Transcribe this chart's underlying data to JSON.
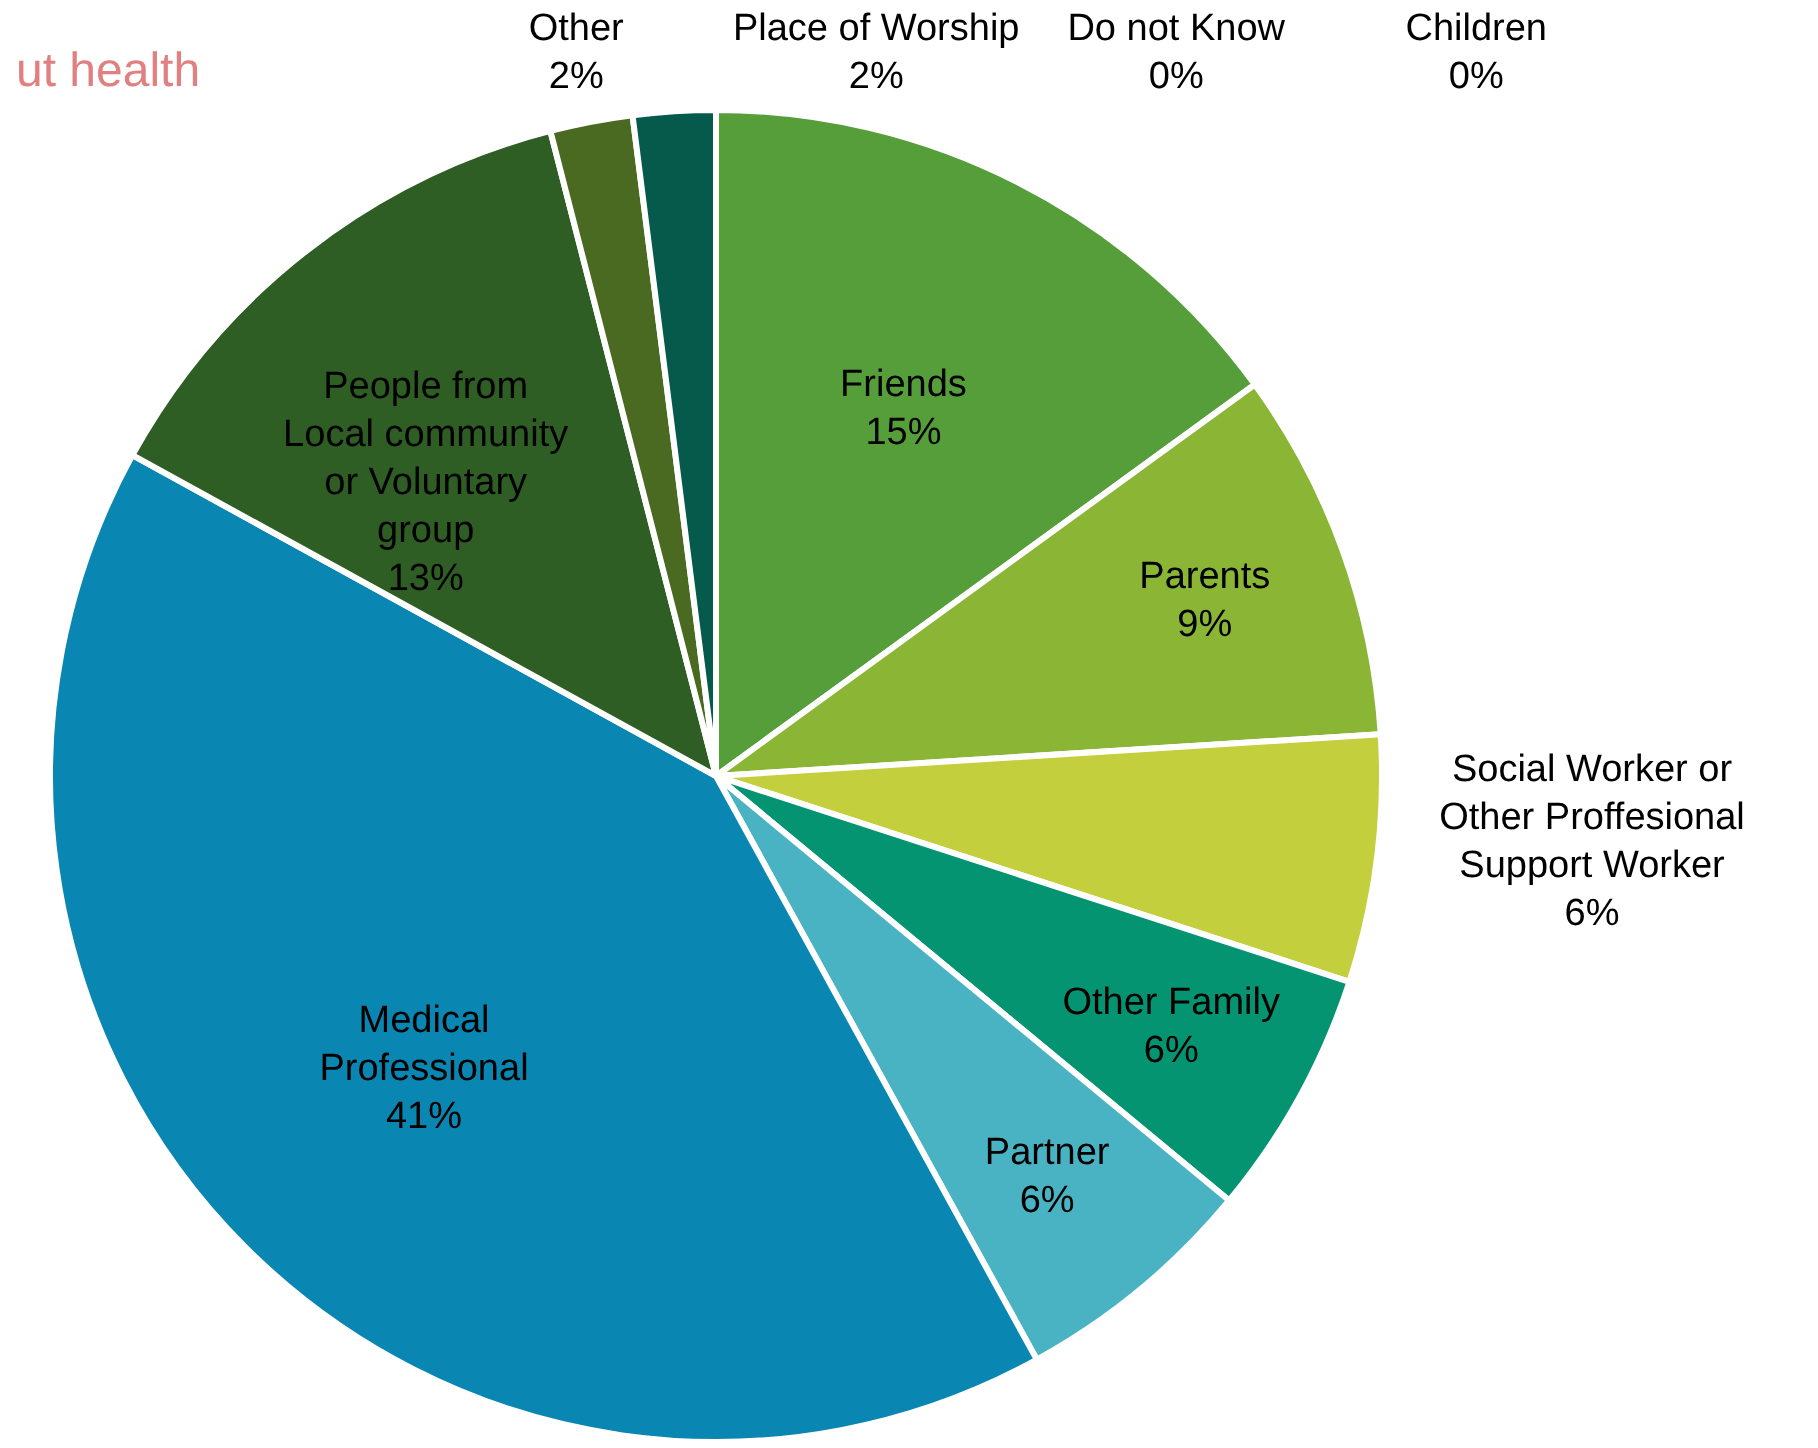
{
  "chart_data": {
    "type": "pie",
    "categories": [
      "Friends",
      "Parents",
      "Social Worker or Other Proffesional Support Worker",
      "Other Family",
      "Partner",
      "Medical Professional",
      "People from Local community or Voluntary group",
      "Other",
      "Place of Worship",
      "Do not Know",
      "Children"
    ],
    "values": [
      15,
      9,
      6,
      6,
      6,
      41,
      13,
      2,
      2,
      0,
      0
    ],
    "value_labels": [
      "15%",
      "9%",
      "6%",
      "6%",
      "6%",
      "41%",
      "13%",
      "2%",
      "2%",
      "0%",
      "0%"
    ],
    "colors": [
      "#559e3a",
      "#8ab535",
      "#c3cf3c",
      "#059471",
      "#4ab3c3",
      "#0986b1",
      "#2f5e25",
      "#4b6a21",
      "#055a4b",
      "#7f7f7f",
      "#a5a5a5"
    ],
    "annotations": [
      "ut health"
    ]
  }
}
